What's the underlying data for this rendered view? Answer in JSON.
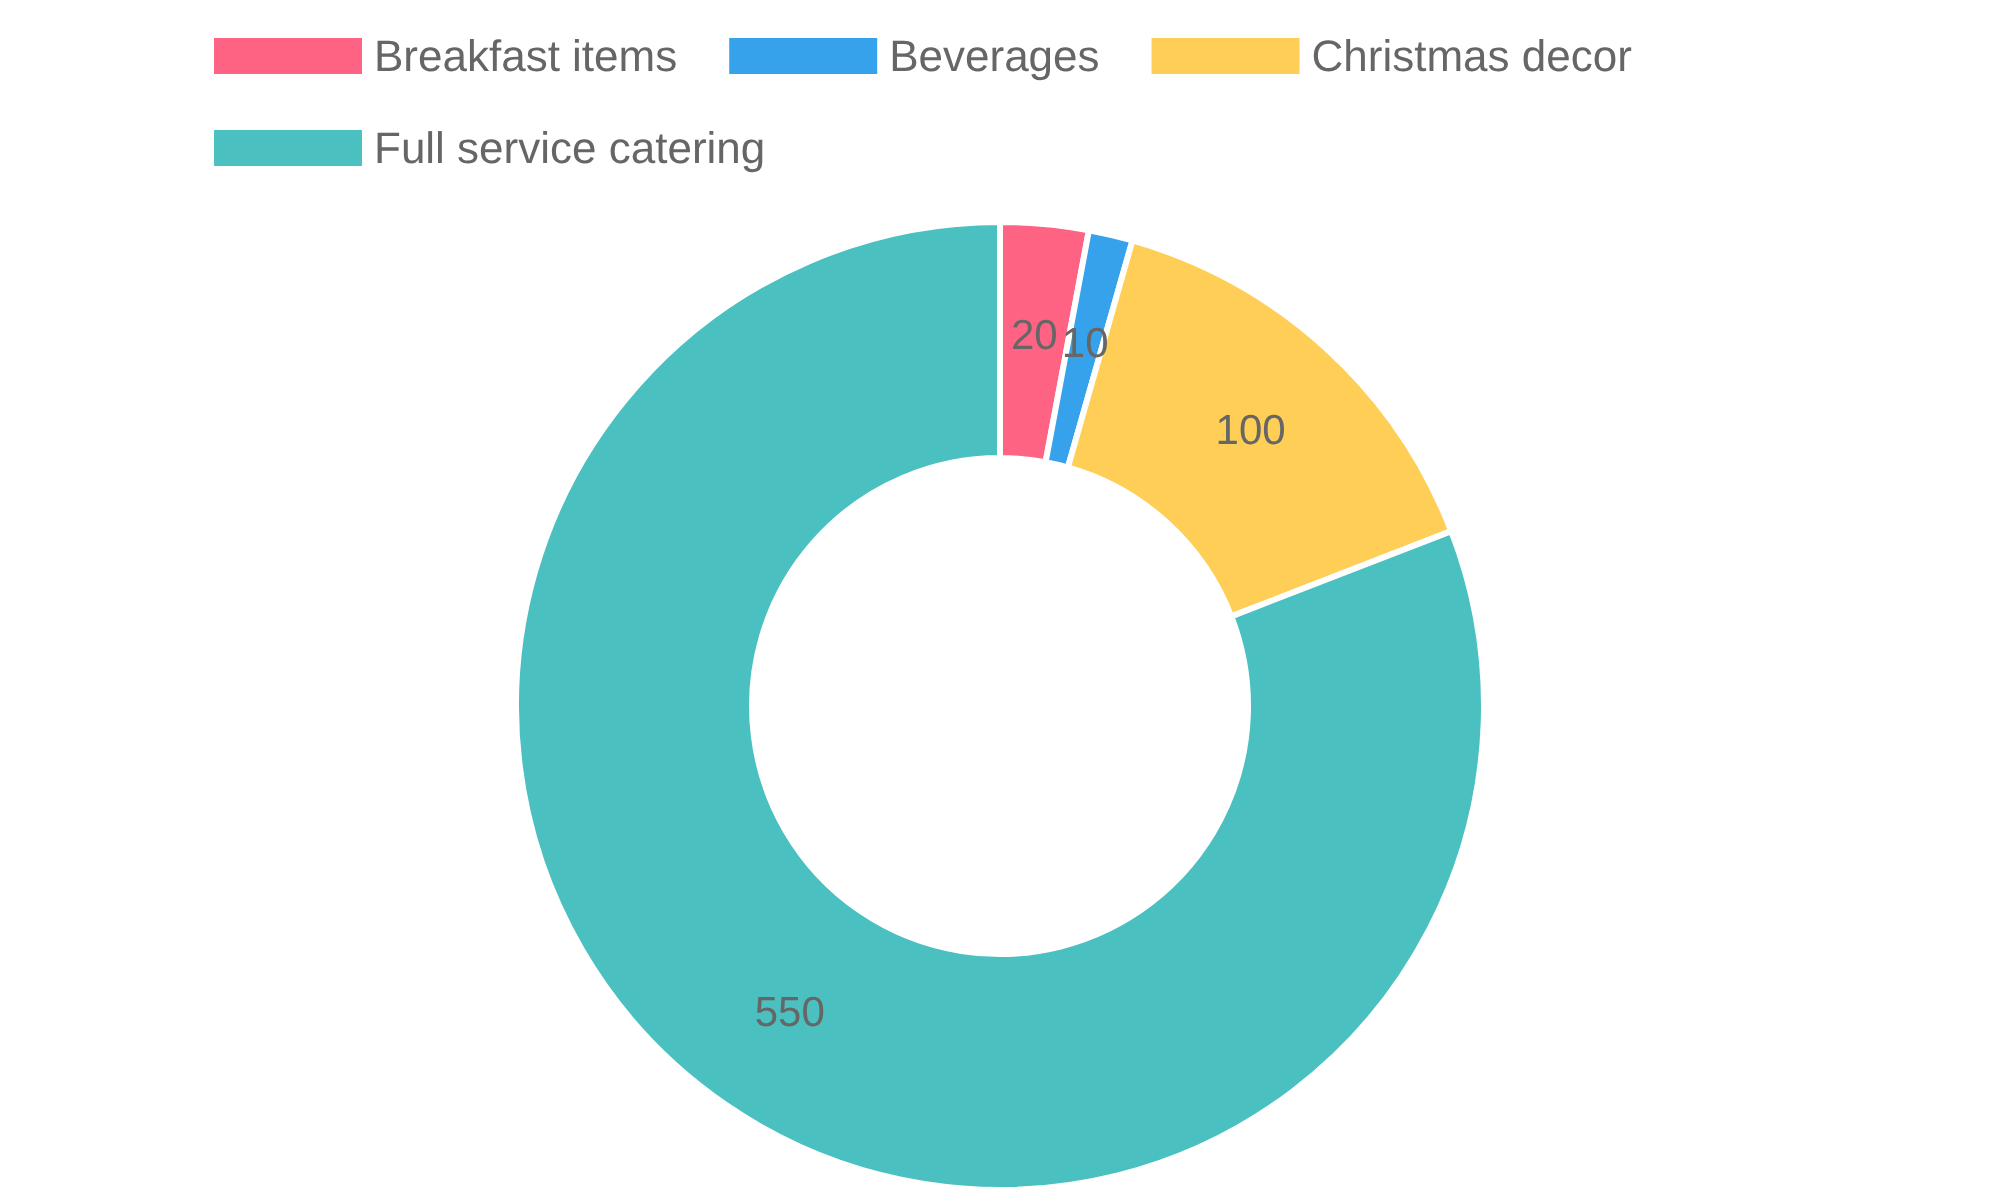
{
  "chart_data": {
    "type": "donut",
    "categories": [
      "Breakfast items",
      "Beverages",
      "Christmas decor",
      "Full service catering"
    ],
    "values": [
      20,
      10,
      100,
      550
    ],
    "colors": [
      "#ff6384",
      "#36a2eb",
      "#ffce56",
      "#4bc0c0"
    ],
    "data_labels": true,
    "legend": "top"
  }
}
